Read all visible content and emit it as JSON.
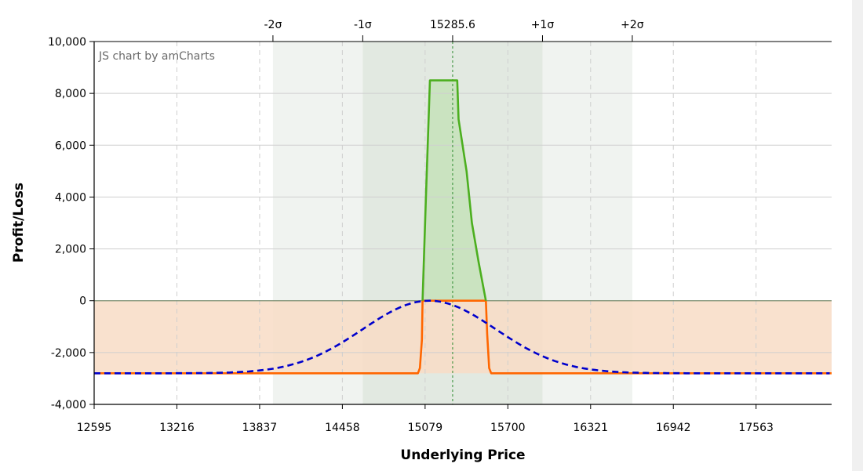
{
  "chart_data": {
    "type": "line",
    "watermark": "JS chart by amCharts",
    "xlabel": "Underlying Price",
    "ylabel": "Profit/Loss",
    "xlim": [
      12595,
      18130
    ],
    "ylim": [
      -4000,
      10000
    ],
    "x_ticks": [
      12595,
      13216,
      13837,
      14458,
      15079,
      15700,
      16321,
      16942,
      17563
    ],
    "y_ticks": [
      10000,
      8000,
      6000,
      4000,
      2000,
      0,
      -2000,
      -4000
    ],
    "y_tick_labels": [
      "10,000",
      "8,000",
      "6,000",
      "4,000",
      "2,000",
      "0",
      "-2,000",
      "-4,000"
    ],
    "sigma_bands": [
      {
        "label": "-2σ",
        "x": 13937
      },
      {
        "label": "-1σ",
        "x": 14611
      },
      {
        "label": "15285.6",
        "x": 15285.6
      },
      {
        "label": "+1σ",
        "x": 15960
      },
      {
        "label": "+2σ",
        "x": 16634
      }
    ],
    "current_price": 15285.6,
    "series": [
      {
        "color": "#ff6600",
        "points": [
          [
            12595,
            -2800
          ],
          [
            15025,
            -2800
          ],
          [
            15040,
            -2600
          ],
          [
            15055,
            -1500
          ],
          [
            15060,
            0
          ],
          [
            15060,
            0
          ],
          [
            15290,
            0
          ],
          [
            15290,
            0
          ],
          [
            15290,
            0
          ],
          [
            15535,
            0
          ],
          [
            15535,
            0
          ],
          [
            15545,
            -1300
          ],
          [
            15560,
            -2600
          ],
          [
            15575,
            -2800
          ],
          [
            18130,
            -2800
          ]
        ]
      },
      {
        "color": "#4caf1f",
        "points": [
          [
            15060,
            0
          ],
          [
            15085,
            4000
          ],
          [
            15115,
            8500
          ],
          [
            15320,
            8500
          ],
          [
            15330,
            7000
          ],
          [
            15390,
            5000
          ],
          [
            15430,
            3000
          ],
          [
            15480,
            1500
          ],
          [
            15535,
            0
          ]
        ]
      },
      {
        "color": "#0000cc",
        "dashed": true,
        "gaussian": {
          "amplitude": 2800,
          "mu": 15110,
          "sigma": 500,
          "baseline": -2800
        }
      }
    ],
    "colors": {
      "profit_fill": "#c8e2bd",
      "loss_fill": "#f8dcc6",
      "band_outer": "#f0f3f0",
      "band_inner": "#e2e9e1",
      "grid": "#cfcfcf",
      "axis": "#000000",
      "zero_line": "#7a8c6e"
    }
  }
}
